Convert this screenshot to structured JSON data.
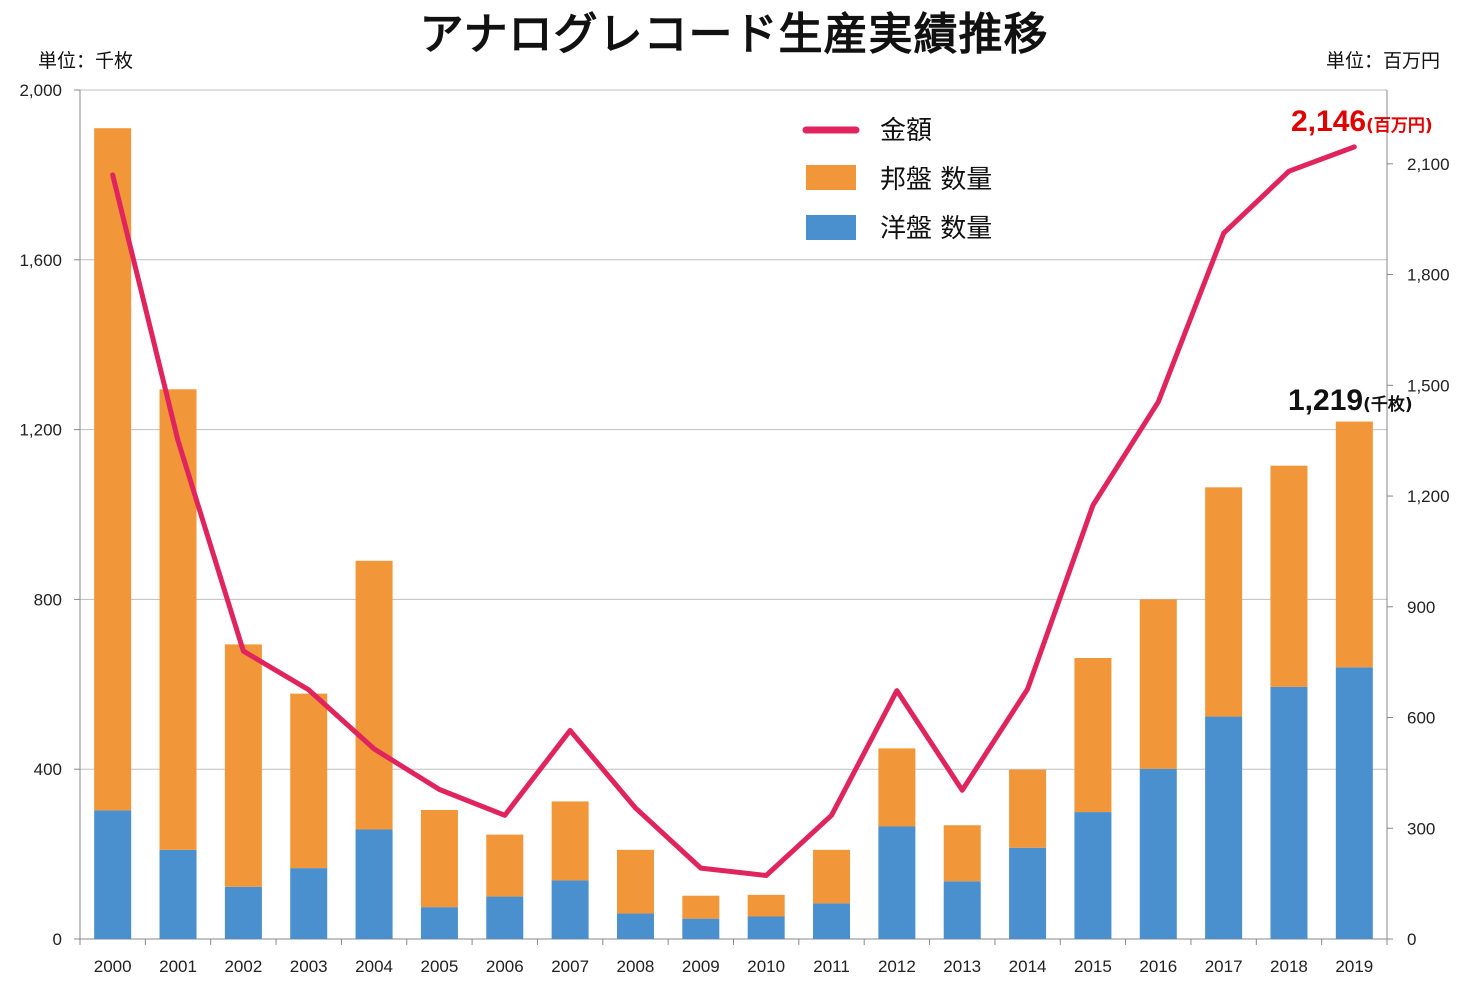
{
  "title": "アナログレコード生産実績推移",
  "unit_left": "単位：千枚",
  "unit_right": "単位：百万円",
  "colors": {
    "domestic": "#F2963A",
    "foreign": "#4A8FCE",
    "amount": "#E0245E",
    "grid": "#BFBFBF",
    "annotation_amount": "#E00000",
    "annotation_qty": "#111111"
  },
  "chart_data": {
    "type": "bar",
    "stacked": true,
    "categories": [
      "2000",
      "2001",
      "2002",
      "2003",
      "2004",
      "2005",
      "2006",
      "2007",
      "2008",
      "2009",
      "2010",
      "2011",
      "2012",
      "2013",
      "2014",
      "2015",
      "2016",
      "2017",
      "2018",
      "2019"
    ],
    "series": [
      {
        "name": "洋盤 数量",
        "kind": "bar",
        "axis": "left",
        "values": [
          303,
          210,
          123,
          167,
          258,
          75,
          100,
          138,
          60,
          48,
          53,
          84,
          265,
          136,
          215,
          299,
          401,
          524,
          594,
          640
        ]
      },
      {
        "name": "邦盤 数量",
        "kind": "bar",
        "axis": "left",
        "values": [
          1607,
          1085,
          571,
          411,
          633,
          229,
          146,
          186,
          150,
          54,
          51,
          126,
          184,
          132,
          184,
          363,
          399,
          540,
          521,
          579
        ]
      },
      {
        "name": "金額",
        "kind": "line",
        "axis": "right",
        "values": [
          2070,
          1350,
          780,
          675,
          515,
          405,
          335,
          565,
          355,
          192,
          172,
          335,
          673,
          403,
          677,
          1175,
          1455,
          1912,
          2080,
          2146
        ]
      }
    ],
    "y_left": {
      "min": 0,
      "max": 2000,
      "ticks": [
        0,
        400,
        800,
        1200,
        1600,
        2000
      ]
    },
    "y_right": {
      "min": 0,
      "max": 2300,
      "ticks": [
        0,
        300,
        600,
        900,
        1200,
        1500,
        1800,
        2100
      ]
    },
    "legend_position": "top-center",
    "grid": true,
    "annotations": {
      "amount_value": "2,146",
      "amount_unit": "(百万円)",
      "qty_value": "1,219",
      "qty_unit": "(千枚)"
    }
  }
}
